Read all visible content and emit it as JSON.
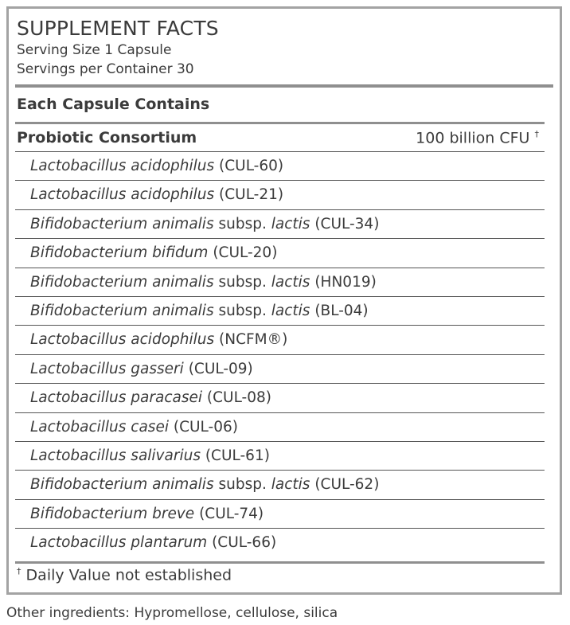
{
  "title": "SUPPLEMENT FACTS",
  "serving_size": "Serving Size 1 Capsule",
  "servings_per_container": "Servings per Container 30",
  "section_header": "Each Capsule Contains",
  "consortium": {
    "name": "Probiotic Consortium",
    "amount": "100 billion CFU",
    "mark": "†"
  },
  "strains": [
    {
      "species": "Lactobacillus acidophilus",
      "subsp": "",
      "subsp_name": "",
      "strain": "(CUL-60)"
    },
    {
      "species": "Lactobacillus acidophilus",
      "subsp": "",
      "subsp_name": "",
      "strain": "(CUL-21)"
    },
    {
      "species": "Bifidobacterium animalis",
      "subsp": "subsp.",
      "subsp_name": "lactis",
      "strain": "(CUL-34)"
    },
    {
      "species": "Bifidobacterium bifidum",
      "subsp": "",
      "subsp_name": "",
      "strain": "(CUL-20)"
    },
    {
      "species": "Bifidobacterium animalis",
      "subsp": "subsp.",
      "subsp_name": "lactis",
      "strain": "(HN019)"
    },
    {
      "species": "Bifidobacterium animalis",
      "subsp": "subsp.",
      "subsp_name": "lactis",
      "strain": "(BL-04)"
    },
    {
      "species": "Lactobacillus acidophilus",
      "subsp": "",
      "subsp_name": "",
      "strain": "(NCFM®)"
    },
    {
      "species": "Lactobacillus gasseri",
      "subsp": "",
      "subsp_name": "",
      "strain": "(CUL-09)"
    },
    {
      "species": "Lactobacillus paracasei",
      "subsp": "",
      "subsp_name": "",
      "strain": "(CUL-08)"
    },
    {
      "species": "Lactobacillus casei",
      "subsp": "",
      "subsp_name": "",
      "strain": "(CUL-06)"
    },
    {
      "species": "Lactobacillus salivarius",
      "subsp": "",
      "subsp_name": "",
      "strain": "(CUL-61)"
    },
    {
      "species": "Bifidobacterium animalis",
      "subsp": "subsp.",
      "subsp_name": "lactis",
      "strain": "(CUL-62)"
    },
    {
      "species": "Bifidobacterium breve",
      "subsp": "",
      "subsp_name": "",
      "strain": "(CUL-74)"
    },
    {
      "species": "Lactobacillus plantarum",
      "subsp": "",
      "subsp_name": "",
      "strain": "(CUL-66)"
    }
  ],
  "footnote": {
    "mark": "†",
    "text": "Daily Value not established"
  },
  "other_ingredients": "Other ingredients: Hypromellose, cellulose, silica",
  "colors": {
    "text": "#3b3b3b",
    "border": "#a3a3a3",
    "rule": "#8f8f8f"
  }
}
